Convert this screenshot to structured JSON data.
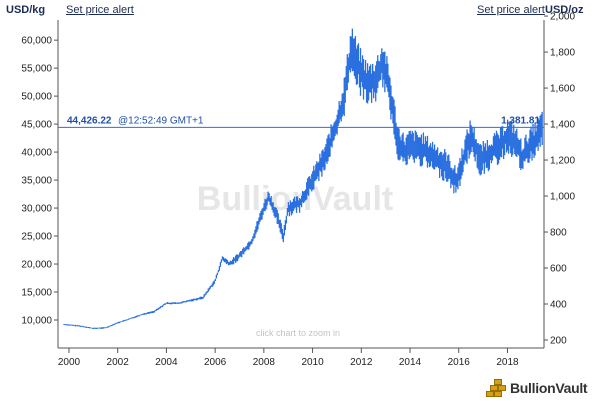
{
  "header": {
    "unit_left": "USD/kg",
    "alert_left": "Set price alert",
    "alert_right": "Set price alert",
    "unit_right": "USD/oz"
  },
  "chart_data": {
    "type": "line",
    "title": "",
    "watermark": "BullionVault",
    "hint": "click chart to zoom in",
    "current": {
      "left_label": "44,426.22",
      "time_label": "@12:52:49 GMT+1",
      "right_label": "1,381.81",
      "value_kg": 44426.22
    },
    "y_left": {
      "ticks": [
        10000,
        15000,
        20000,
        25000,
        30000,
        35000,
        40000,
        45000,
        50000,
        55000,
        60000
      ],
      "tick_labels": [
        "10,000",
        "15,000",
        "20,000",
        "25,000",
        "30,000",
        "35,000",
        "40,000",
        "45,000",
        "50,000",
        "55,000",
        "60,000"
      ]
    },
    "y_right": {
      "ticks": [
        200,
        400,
        600,
        800,
        1000,
        1200,
        1400,
        1600,
        1800,
        2000
      ],
      "tick_labels": [
        "200",
        "400",
        "600",
        "800",
        "1,000",
        "1,200",
        "1,400",
        "1,600",
        "1,800",
        "2,000"
      ]
    },
    "x_ticks": [
      2000,
      2002,
      2004,
      2006,
      2008,
      2010,
      2012,
      2014,
      2016,
      2018
    ],
    "x_tick_labels": [
      "2000",
      "2002",
      "2004",
      "2006",
      "2008",
      "2010",
      "2012",
      "2014",
      "2016",
      "2018"
    ],
    "x": [
      1999.8,
      2000.5,
      2001.0,
      2001.5,
      2002.0,
      2002.5,
      2003.0,
      2003.5,
      2004.0,
      2004.5,
      2005.0,
      2005.5,
      2006.0,
      2006.3,
      2006.6,
      2007.0,
      2007.5,
      2008.0,
      2008.2,
      2008.5,
      2008.8,
      2009.0,
      2009.5,
      2010.0,
      2010.5,
      2011.0,
      2011.3,
      2011.6,
      2011.8,
      2012.0,
      2012.3,
      2012.6,
      2012.9,
      2013.2,
      2013.5,
      2013.8,
      2014.0,
      2014.5,
      2015.0,
      2015.5,
      2015.9,
      2016.2,
      2016.5,
      2016.9,
      2017.3,
      2017.7,
      2018.0,
      2018.3,
      2018.6,
      2018.9,
      2019.2,
      2019.45
    ],
    "y": [
      9200,
      8900,
      8500,
      8600,
      9500,
      10200,
      11000,
      11500,
      13000,
      13000,
      13500,
      14000,
      17000,
      21000,
      20000,
      21500,
      24000,
      30000,
      32000,
      29000,
      25000,
      30000,
      31000,
      35000,
      39000,
      45000,
      50000,
      59000,
      56000,
      54000,
      52000,
      53000,
      56000,
      50000,
      42000,
      40000,
      41000,
      40500,
      39000,
      37500,
      34500,
      39000,
      43000,
      38500,
      40000,
      41000,
      43000,
      42000,
      39000,
      41000,
      42500,
      44426
    ]
  },
  "logo": {
    "text": "BullionVault"
  }
}
